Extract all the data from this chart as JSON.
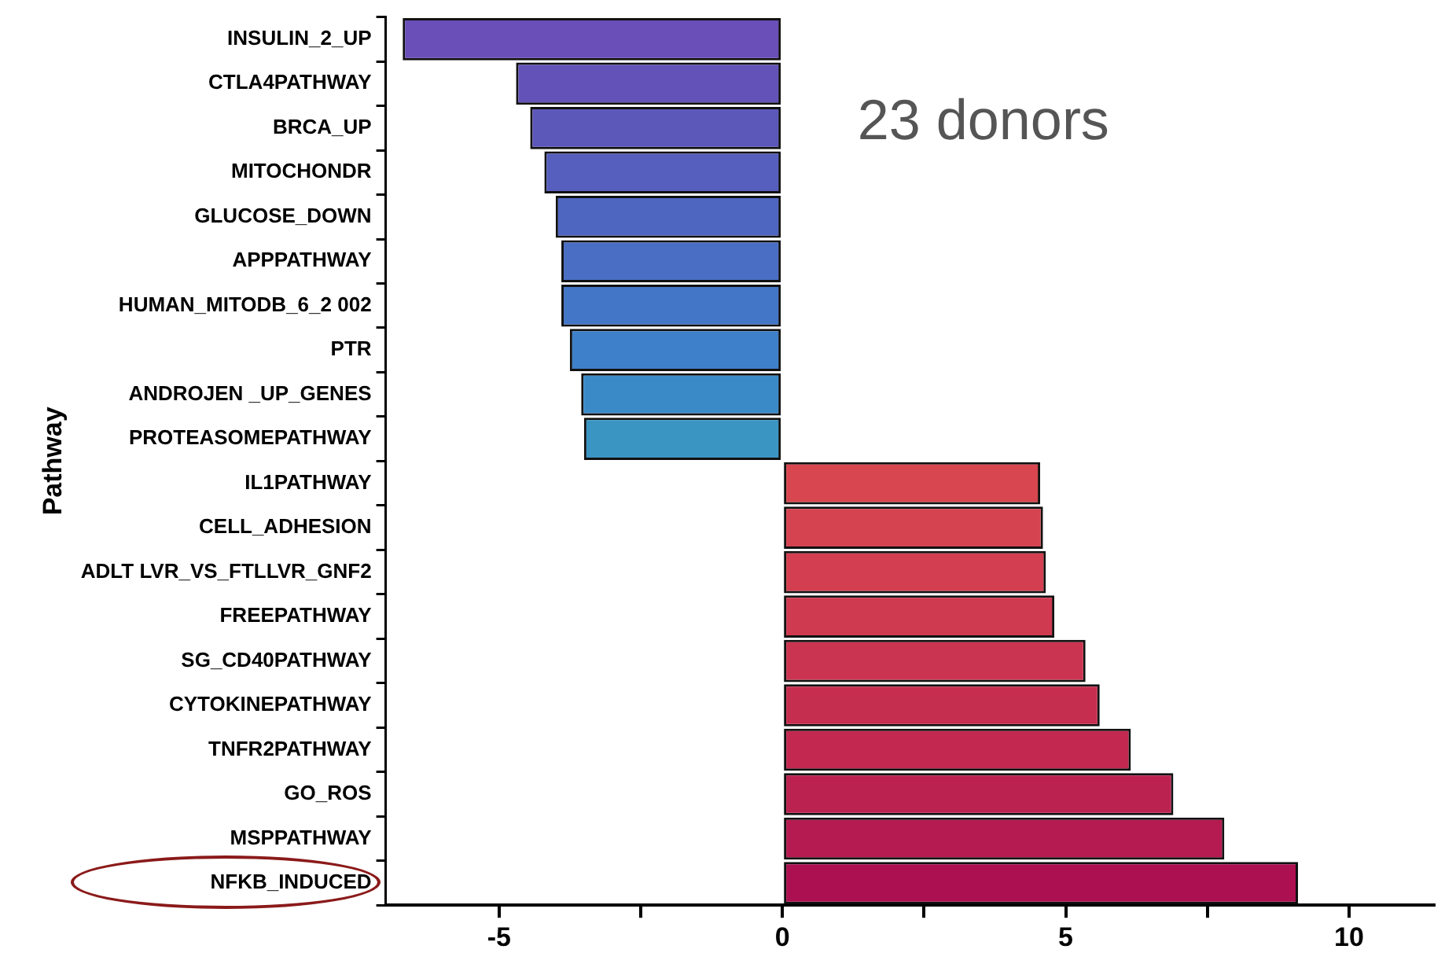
{
  "chart_data": {
    "type": "bar",
    "orientation": "horizontal",
    "ylabel": "Pathway",
    "categories": [
      "INSULIN_2_UP",
      "CTLA4PATHWAY",
      "BRCA_UP",
      "MITOCHONDR",
      "GLUCOSE_DOWN",
      "APPPATHWAY",
      "HUMAN_MITODB_6_2 002",
      "PTR",
      "ANDROJEN _UP_GENES",
      "PROTEASOMEPATHWAY",
      "IL1PATHWAY",
      "CELL_ADHESION",
      "ADLT LVR_VS_FTLLVR_GNF2",
      "FREEPATHWAY",
      "SG_CD40PATHWAY",
      "CYTOKINEPATHWAY",
      "TNFR2PATHWAY",
      "GO_ROS",
      "MSPPATHWAY",
      "NFKB_INDUCED"
    ],
    "values": [
      -6.7,
      -4.7,
      -4.45,
      -4.2,
      -4.0,
      -3.9,
      -3.9,
      -3.75,
      -3.55,
      -3.5,
      4.55,
      4.6,
      4.65,
      4.8,
      5.35,
      5.6,
      6.15,
      6.9,
      7.8,
      9.1
    ],
    "colors": [
      "#6a4fb8",
      "#6353b8",
      "#5c58ba",
      "#565fbd",
      "#4f66c0",
      "#4a6ec4",
      "#4476c7",
      "#3f80ca",
      "#3a8ac8",
      "#3a95c2",
      "#d8464f",
      "#d64350",
      "#d33f50",
      "#cf3a50",
      "#cb3450",
      "#c62e50",
      "#c22850",
      "#bc2250",
      "#b51b50",
      "#ac1050"
    ],
    "xlim": [
      -7,
      11.5
    ],
    "xticks": [
      -5,
      {
        "value": -2.5,
        "label": null
      },
      0,
      {
        "value": 2.5,
        "label": null
      },
      5,
      {
        "value": 7.5,
        "label": null
      },
      10
    ],
    "grid": false,
    "legend": false,
    "annotations": [
      "23 donors"
    ]
  }
}
